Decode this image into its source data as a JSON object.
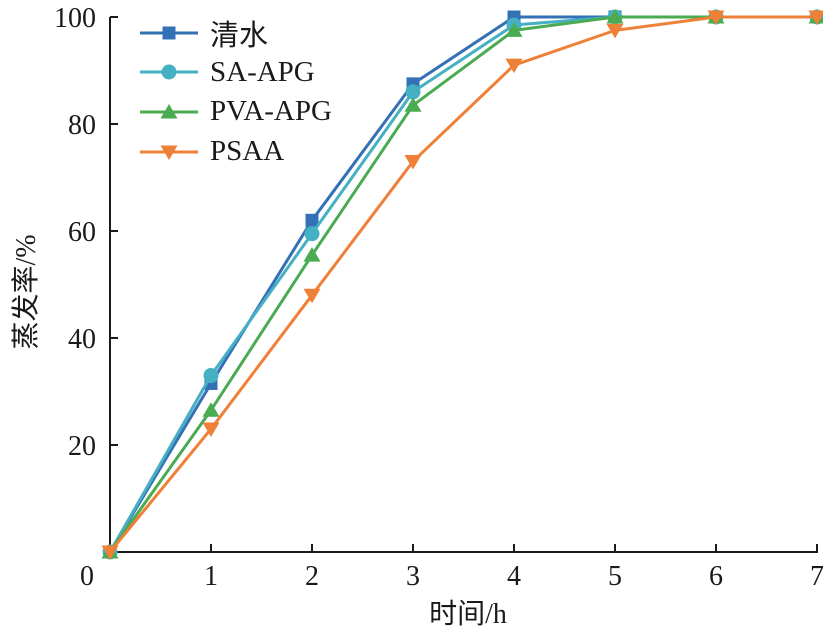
{
  "chart_data": {
    "type": "line",
    "title": "",
    "xlabel": "时间/h",
    "ylabel": "蒸发率/%",
    "xlim": [
      0,
      7
    ],
    "ylim": [
      0,
      100
    ],
    "xticks": [
      0,
      1,
      2,
      3,
      4,
      5,
      6,
      7
    ],
    "yticks": [
      20,
      40,
      60,
      80,
      100
    ],
    "grid": false,
    "legend_position": "top-left",
    "axis_color": "#1a1a1a",
    "x": [
      0,
      1,
      2,
      3,
      4,
      5,
      6,
      7
    ],
    "series": [
      {
        "name": "清水",
        "marker": "square",
        "color": "#3470b5",
        "values": [
          0,
          31.5,
          62,
          87.5,
          100,
          100,
          100,
          100
        ]
      },
      {
        "name": "SA-APG",
        "marker": "circle",
        "color": "#45b0c3",
        "values": [
          0,
          33,
          59.5,
          86,
          98.5,
          100,
          100,
          100
        ]
      },
      {
        "name": "PVA-APG",
        "marker": "triangle-up",
        "color": "#4aab51",
        "values": [
          0,
          26.5,
          55.5,
          83.5,
          97.5,
          100,
          100,
          100
        ]
      },
      {
        "name": "PSAA",
        "marker": "triangle-down",
        "color": "#ee8038",
        "values": [
          0,
          23,
          48,
          73,
          91,
          97.5,
          100,
          100
        ]
      }
    ]
  }
}
